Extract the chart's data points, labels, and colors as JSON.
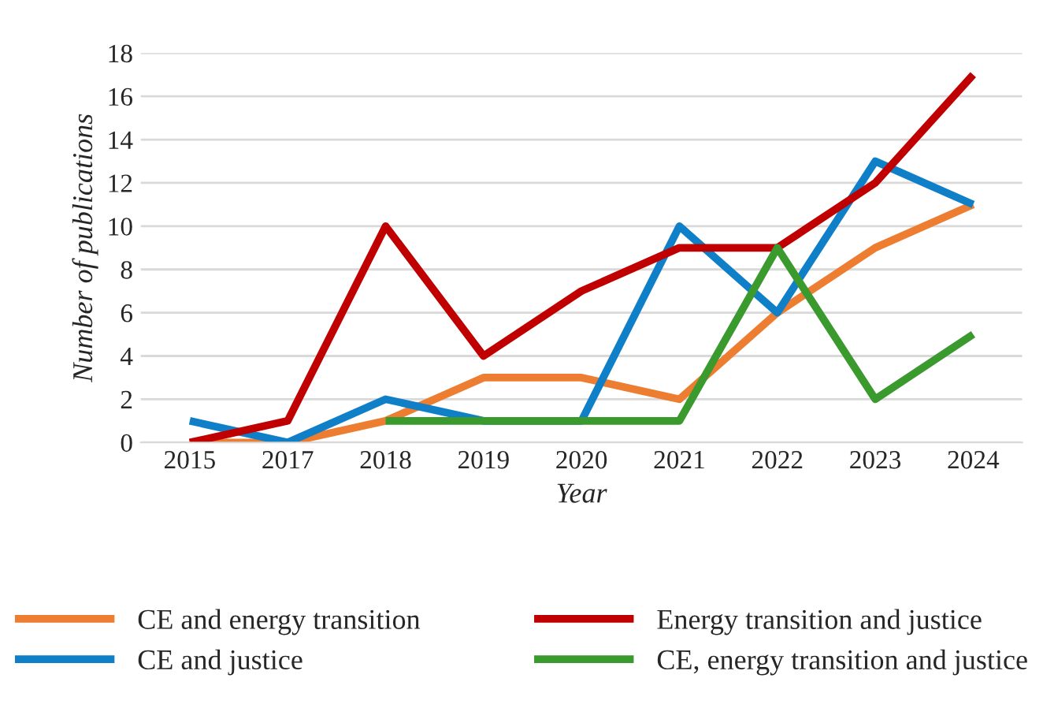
{
  "chart_data": {
    "type": "line",
    "xlabel": "Year",
    "ylabel": "Number of publications",
    "categories": [
      "2015",
      "2017",
      "2018",
      "2019",
      "2020",
      "2021",
      "2022",
      "2023",
      "2024"
    ],
    "series": [
      {
        "name": "CE and energy transition",
        "color": "#ed7d31",
        "values": [
          0,
          0,
          1,
          3,
          3,
          2,
          6,
          9,
          11
        ]
      },
      {
        "name": "CE and justice",
        "color": "#0f7fc8",
        "values": [
          1,
          0,
          2,
          1,
          1,
          10,
          6,
          13,
          11
        ]
      },
      {
        "name": "Energy transition and justice",
        "color": "#c00000",
        "values": [
          0,
          1,
          10,
          4,
          7,
          9,
          9,
          12,
          17
        ]
      },
      {
        "name": "CE, energy transition and justice",
        "color": "#3a9a2e",
        "values": [
          null,
          null,
          1,
          1,
          1,
          1,
          9,
          2,
          5
        ]
      }
    ],
    "ylim": [
      0,
      18
    ],
    "yticks": [
      0,
      2,
      4,
      6,
      8,
      10,
      12,
      14,
      16,
      18
    ],
    "grid": "y",
    "legend": "bottom",
    "line_style": "solid",
    "marker": "none"
  }
}
